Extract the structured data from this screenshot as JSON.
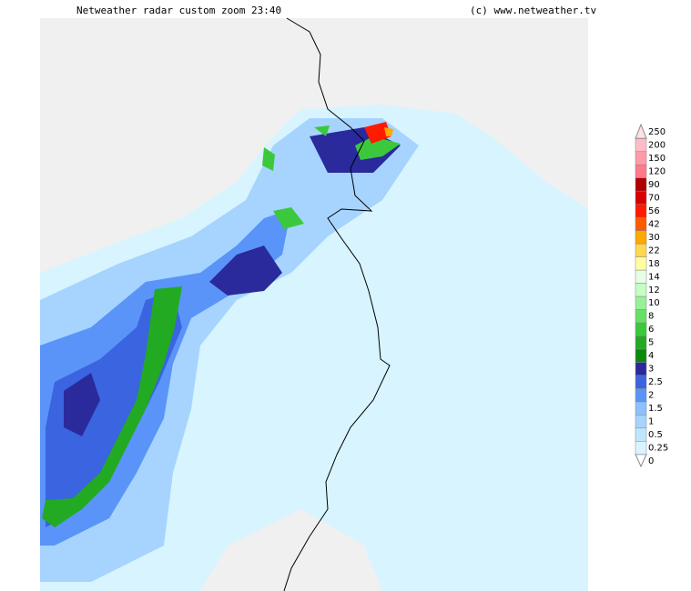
{
  "header": {
    "title": "Netweather radar custom zoom 23:40",
    "credit": "(c) www.netweather.tv"
  },
  "legend": {
    "levels": [
      {
        "label": "0",
        "color": "#ffffff"
      },
      {
        "label": "0.25",
        "color": "#d8f4ff"
      },
      {
        "label": "0.5",
        "color": "#bfe6ff"
      },
      {
        "label": "1",
        "color": "#a6d4ff"
      },
      {
        "label": "1.5",
        "color": "#8cc0ff"
      },
      {
        "label": "2",
        "color": "#5a94f8"
      },
      {
        "label": "2.5",
        "color": "#3a64e0"
      },
      {
        "label": "3",
        "color": "#2a2a9c"
      },
      {
        "label": "4",
        "color": "#0a8a0a"
      },
      {
        "label": "5",
        "color": "#22aa22"
      },
      {
        "label": "6",
        "color": "#3cc83c"
      },
      {
        "label": "8",
        "color": "#66e066"
      },
      {
        "label": "10",
        "color": "#98f098"
      },
      {
        "label": "12",
        "color": "#c4ffc4"
      },
      {
        "label": "14",
        "color": "#e4ffe4"
      },
      {
        "label": "18",
        "color": "#ffffa0"
      },
      {
        "label": "22",
        "color": "#ffd850"
      },
      {
        "label": "30",
        "color": "#ffa800"
      },
      {
        "label": "42",
        "color": "#ff5a00"
      },
      {
        "label": "56",
        "color": "#ff1a00"
      },
      {
        "label": "70",
        "color": "#d80000"
      },
      {
        "label": "90",
        "color": "#b00000"
      },
      {
        "label": "120",
        "color": "#ff7a8a"
      },
      {
        "label": "150",
        "color": "#ff9aa8"
      },
      {
        "label": "200",
        "color": "#ffbcc6"
      },
      {
        "label": "250",
        "color": "#ffe0e6"
      }
    ]
  }
}
